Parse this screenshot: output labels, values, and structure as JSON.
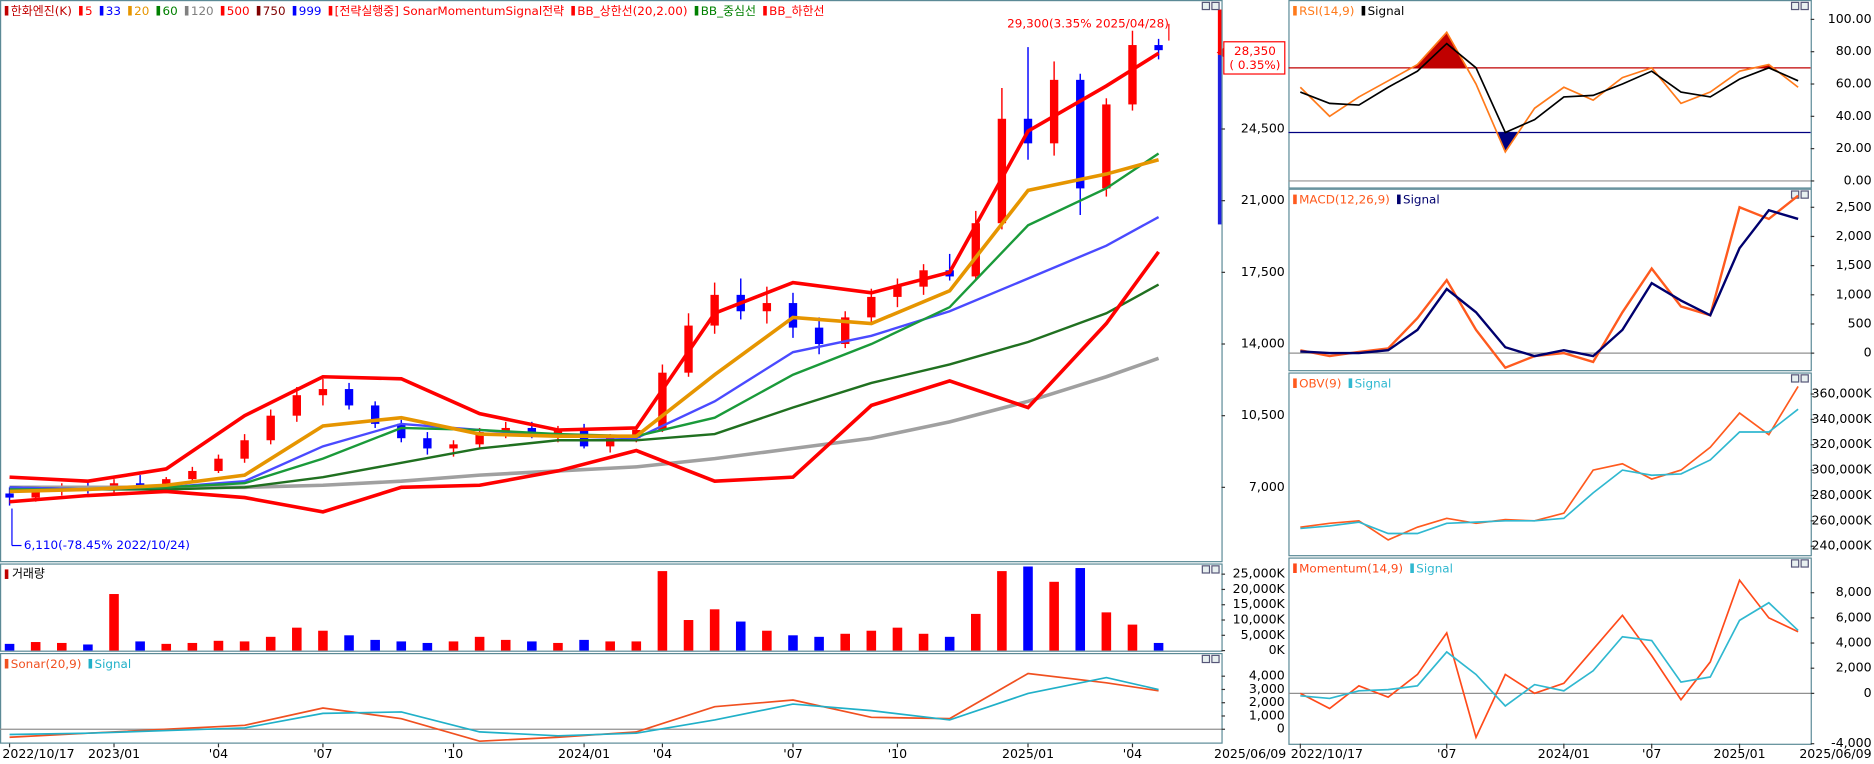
{
  "chart_data": [
    {
      "type": "candlestick",
      "legend": [
        {
          "text": "한화엔진(K)",
          "color": "#c00000"
        },
        {
          "text": "5",
          "color": "#ff0000"
        },
        {
          "text": "33",
          "color": "#0000ff"
        },
        {
          "text": "20",
          "color": "#e69500"
        },
        {
          "text": "60",
          "color": "#008000"
        },
        {
          "text": "120",
          "color": "#808080"
        },
        {
          "text": "500",
          "color": "#ff0000"
        },
        {
          "text": "750",
          "color": "#800000"
        },
        {
          "text": "999",
          "color": "#0000ff"
        },
        {
          "text": "[전략실행중] SonarMomentumSignal전략",
          "color": "#ff0000"
        },
        {
          "text": "BB_상한선(20,2.00)",
          "color": "#ff0000"
        },
        {
          "text": "BB_중심선",
          "color": "#008000"
        },
        {
          "text": "BB_하한선",
          "color": "#ff0000"
        }
      ],
      "categories": [
        "2022/10/17",
        null,
        null,
        null,
        "2023/01",
        null,
        null,
        null,
        "'04",
        null,
        null,
        null,
        "'07",
        null,
        null,
        null,
        null,
        "'10",
        null,
        null,
        null,
        null,
        "2024/01",
        null,
        null,
        "'04",
        null,
        null,
        null,
        null,
        "'07",
        null,
        null,
        null,
        "'10",
        null,
        null,
        null,
        null,
        "2025/01",
        null,
        null,
        null,
        "'04",
        null
      ],
      "date_label": "2025/06/09",
      "open": [
        6700,
        6500,
        6800,
        7000,
        6900,
        7200,
        7100,
        7400,
        7800,
        8400,
        9300,
        10500,
        11500,
        11800,
        11000,
        10100,
        9400,
        8900,
        9100,
        9700,
        9900,
        9600,
        9800,
        9000,
        9400,
        9800,
        12600,
        14900,
        16400,
        15600,
        16000,
        14800,
        14000,
        15300,
        16300,
        16800,
        17600,
        17300,
        19900,
        25000,
        23800,
        26900,
        21600,
        25700,
        28600
      ],
      "high": [
        7000,
        6900,
        7200,
        7300,
        7400,
        7600,
        7500,
        8000,
        8600,
        9600,
        10800,
        11900,
        12300,
        12100,
        11200,
        10300,
        9700,
        9300,
        9900,
        10200,
        10200,
        10000,
        10100,
        9600,
        10000,
        13000,
        15500,
        17000,
        17200,
        16800,
        16500,
        15300,
        15600,
        16700,
        17200,
        17900,
        18400,
        20500,
        26500,
        28500,
        27800,
        27200,
        26000,
        29300,
        28900
      ],
      "low": [
        6110,
        6300,
        6600,
        6700,
        6700,
        7000,
        6900,
        7300,
        7700,
        8200,
        9100,
        10200,
        11000,
        10800,
        9900,
        9200,
        8600,
        8500,
        8900,
        9400,
        9400,
        9200,
        8900,
        8700,
        9200,
        9700,
        12400,
        14500,
        15200,
        15000,
        14300,
        13500,
        13800,
        15000,
        15800,
        16400,
        17100,
        17100,
        19600,
        23000,
        23200,
        20300,
        21200,
        25400,
        27900
      ],
      "close": [
        6500,
        6800,
        7000,
        6900,
        7200,
        7100,
        7400,
        7800,
        8400,
        9300,
        10500,
        11500,
        11800,
        11000,
        10100,
        9400,
        8900,
        9100,
        9700,
        9900,
        9600,
        9800,
        9000,
        9400,
        9800,
        12600,
        14900,
        16400,
        15600,
        16000,
        14800,
        14000,
        15300,
        16300,
        16800,
        17600,
        17300,
        19900,
        25000,
        23800,
        26900,
        21600,
        25700,
        28600,
        28350
      ],
      "up_color": "#ff0000",
      "down_color": "#0000ff",
      "overlays": {
        "x": [
          0,
          3,
          6,
          9,
          12,
          15,
          18,
          21,
          24,
          27,
          30,
          33,
          36,
          39,
          42,
          44
        ],
        "series": [
          {
            "color": "#a0a0a0",
            "width": 3,
            "values": [
              7000,
              7000,
              7000,
              7000,
              7100,
              7300,
              7600,
              7800,
              8000,
              8400,
              8900,
              9400,
              10200,
              11200,
              12400,
              13300
            ]
          },
          {
            "color": "#207020",
            "width": 2,
            "values": [
              7000,
              6900,
              6900,
              7000,
              7500,
              8200,
              8900,
              9300,
              9300,
              9600,
              10900,
              12100,
              13000,
              14100,
              15500,
              16900
            ]
          },
          {
            "color": "#4a4aff",
            "width": 2,
            "values": [
              7000,
              6900,
              7000,
              7300,
              9000,
              10100,
              9800,
              9500,
              9400,
              11200,
              13600,
              14400,
              15600,
              17200,
              18800,
              20200
            ]
          },
          {
            "color": "#1a9a3a",
            "width": 2,
            "values": [
              6900,
              6900,
              7000,
              7200,
              8400,
              9900,
              9800,
              9600,
              9500,
              10400,
              12500,
              14000,
              15800,
              19800,
              21600,
              23300
            ]
          },
          {
            "color": "#e69500",
            "width": 3,
            "values": [
              6800,
              6900,
              7100,
              7600,
              10000,
              10400,
              9600,
              9500,
              9500,
              12500,
              15300,
              15000,
              16600,
              21500,
              22300,
              23000
            ]
          },
          {
            "color": "#ff0000",
            "width": 3,
            "values": [
              7500,
              7300,
              7900,
              10500,
              12400,
              12300,
              10600,
              9800,
              9900,
              15500,
              17000,
              16500,
              17500,
              24400,
              26600,
              28200
            ]
          },
          {
            "color": "#ff0000",
            "width": 3,
            "values": [
              6300,
              6600,
              6800,
              6500,
              5800,
              7000,
              7100,
              7800,
              8800,
              7300,
              7500,
              11000,
              12200,
              10900,
              15000,
              18500
            ]
          }
        ]
      },
      "ylim": [
        3400,
        30800
      ],
      "yticks": [
        {
          "value": 7000,
          "label": "7,000"
        },
        {
          "value": 10500,
          "label": "10,500"
        },
        {
          "value": 14000,
          "label": "14,000"
        },
        {
          "value": 17500,
          "label": "17,500"
        },
        {
          "value": 21000,
          "label": "21,000"
        },
        {
          "value": 24500,
          "label": "24,500"
        }
      ],
      "annotations": [
        {
          "text": "29,300(3.35% 2025/04/28)",
          "color": "#ff0000"
        },
        {
          "text": "6,110(-78.45% 2022/10/24)",
          "color": "#0000ff"
        }
      ],
      "last_price": "28,350",
      "last_change": "( 0.35%)"
    },
    {
      "type": "bar",
      "title": "거래량",
      "values": [
        2200,
        2800,
        2500,
        2000,
        18500,
        3000,
        2200,
        2500,
        3200,
        3000,
        4500,
        7500,
        6500,
        5000,
        3500,
        3000,
        2500,
        3000,
        4500,
        3500,
        3000,
        2500,
        3500,
        3000,
        3000,
        26000,
        10000,
        13500,
        9500,
        6500,
        5000,
        4500,
        5500,
        6500,
        7500,
        5500,
        4500,
        12000,
        26000,
        27500,
        22500,
        27000,
        12500,
        8500,
        2500
      ],
      "ylim": [
        0,
        28500
      ],
      "yticks": [
        {
          "value": 0,
          "label": "0K"
        },
        {
          "value": 5000,
          "label": "5,000K"
        },
        {
          "value": 10000,
          "label": "10,000K"
        },
        {
          "value": 15000,
          "label": "15,000K"
        },
        {
          "value": 20000,
          "label": "20,000K"
        },
        {
          "value": 25000,
          "label": "25,000K"
        }
      ]
    },
    {
      "type": "line",
      "x": [
        0,
        3,
        6,
        9,
        12,
        15,
        18,
        21,
        24,
        27,
        30,
        33,
        36,
        39,
        42,
        44
      ],
      "series": [
        {
          "name": "Sonar(20,9)",
          "color": "#f05020",
          "values": [
            -600,
            -300,
            0,
            300,
            1600,
            800,
            -900,
            -600,
            -200,
            1700,
            2200,
            900,
            800,
            4200,
            3500,
            2900
          ]
        },
        {
          "name": "Signal",
          "color": "#20b0c8",
          "values": [
            -400,
            -300,
            -100,
            100,
            1200,
            1300,
            -200,
            -500,
            -300,
            700,
            1900,
            1400,
            700,
            2700,
            3900,
            3000
          ]
        }
      ],
      "ylim": [
        -1000,
        5750
      ],
      "yticks": [
        0,
        {
          "value": 1000,
          "label": "1,000"
        },
        {
          "value": 2000,
          "label": "2,000"
        },
        {
          "value": 3000,
          "label": "3,000"
        },
        {
          "value": 4000,
          "label": "4,000"
        }
      ]
    },
    {
      "type": "line",
      "series": [
        {
          "name": "RSI(14,9)",
          "color": "#ff7a1a",
          "values": [
            58,
            40,
            52,
            62,
            72,
            92,
            60,
            18,
            45,
            58,
            50,
            64,
            70,
            48,
            55,
            68,
            72,
            58
          ]
        },
        {
          "name": "Signal",
          "color": "#000000",
          "values": [
            55,
            48,
            47,
            58,
            68,
            85,
            70,
            30,
            38,
            52,
            53,
            60,
            68,
            55,
            52,
            63,
            70,
            62
          ]
        }
      ],
      "levels": [
        {
          "value": 70,
          "color": "#c00000"
        },
        {
          "value": 30,
          "color": "#000080"
        }
      ],
      "ylim": [
        -4,
        112
      ],
      "yticks": [
        {
          "value": 0,
          "label": "0.00"
        },
        {
          "value": 20,
          "label": "20.00"
        },
        {
          "value": 40,
          "label": "40.00"
        },
        {
          "value": 60,
          "label": "60.00"
        },
        {
          "value": 80,
          "label": "80.00"
        },
        {
          "value": 100,
          "label": "100.00"
        }
      ]
    },
    {
      "type": "line",
      "series": [
        {
          "name": "MACD(12,26,9)",
          "color": "#ff5a1e",
          "values": [
            50,
            -50,
            20,
            80,
            600,
            1250,
            400,
            -250,
            -50,
            0,
            -150,
            700,
            1450,
            800,
            650,
            2500,
            2300,
            2700
          ]
        },
        {
          "name": "Signal",
          "color": "#00006e",
          "values": [
            30,
            0,
            0,
            50,
            400,
            1100,
            700,
            100,
            -50,
            50,
            -50,
            400,
            1200,
            900,
            650,
            1800,
            2450,
            2300
          ]
        }
      ],
      "ylim": [
        -290,
        2820
      ],
      "yticks": [
        0,
        500,
        {
          "value": 1000,
          "label": "1,000"
        },
        {
          "value": 1500,
          "label": "1,500"
        },
        {
          "value": 2000,
          "label": "2,000"
        },
        {
          "value": 2500,
          "label": "2,500"
        }
      ]
    },
    {
      "type": "line",
      "series": [
        {
          "name": "OBV(9)",
          "color": "#ff5a1e",
          "values": [
            255000,
            258000,
            260000,
            245000,
            255000,
            262000,
            258000,
            261000,
            260000,
            266000,
            300000,
            305000,
            293000,
            300000,
            318000,
            345000,
            328000,
            366000
          ]
        },
        {
          "name": "Signal",
          "color": "#30b8d0",
          "values": [
            254000,
            256000,
            259000,
            250000,
            250000,
            258000,
            259000,
            260000,
            260000,
            262000,
            282000,
            300000,
            296000,
            297000,
            308000,
            330000,
            330000,
            348000
          ]
        }
      ],
      "ylim": [
        233000,
        377000
      ],
      "yticks": [
        {
          "value": 240000,
          "label": "240,000K"
        },
        {
          "value": 260000,
          "label": "260,000K"
        },
        {
          "value": 280000,
          "label": "280,000K"
        },
        {
          "value": 300000,
          "label": "300,000K"
        },
        {
          "value": 320000,
          "label": "320,000K"
        },
        {
          "value": 340000,
          "label": "340,000K"
        },
        {
          "value": 360000,
          "label": "360,000K"
        }
      ]
    },
    {
      "type": "line",
      "categories": [
        "2022/10/17",
        null,
        null,
        null,
        null,
        "'07",
        null,
        null,
        null,
        "2024/01",
        null,
        null,
        "'07",
        null,
        null,
        "2025/01",
        null,
        null
      ],
      "date_label": "2025/06/09",
      "series": [
        {
          "name": "Momentum(14,9)",
          "color": "#ff4a1a",
          "values": [
            0,
            -1200,
            600,
            -300,
            1500,
            4800,
            -3500,
            1500,
            0,
            800,
            3500,
            6200,
            3000,
            -500,
            2500,
            9000,
            6000,
            4900
          ]
        },
        {
          "name": "Signal",
          "color": "#30b8d0",
          "values": [
            -200,
            -400,
            200,
            300,
            600,
            3300,
            1500,
            -1000,
            700,
            200,
            1800,
            4500,
            4200,
            900,
            1300,
            5800,
            7200,
            5000
          ]
        }
      ],
      "ylim": [
        -4000,
        10800
      ],
      "yticks": [
        {
          "value": -4000,
          "label": "-4,000"
        },
        0,
        {
          "value": 2000,
          "label": "2,000"
        },
        {
          "value": 4000,
          "label": "4,000"
        },
        {
          "value": 6000,
          "label": "6,000"
        },
        {
          "value": 8000,
          "label": "8,000"
        }
      ]
    }
  ]
}
